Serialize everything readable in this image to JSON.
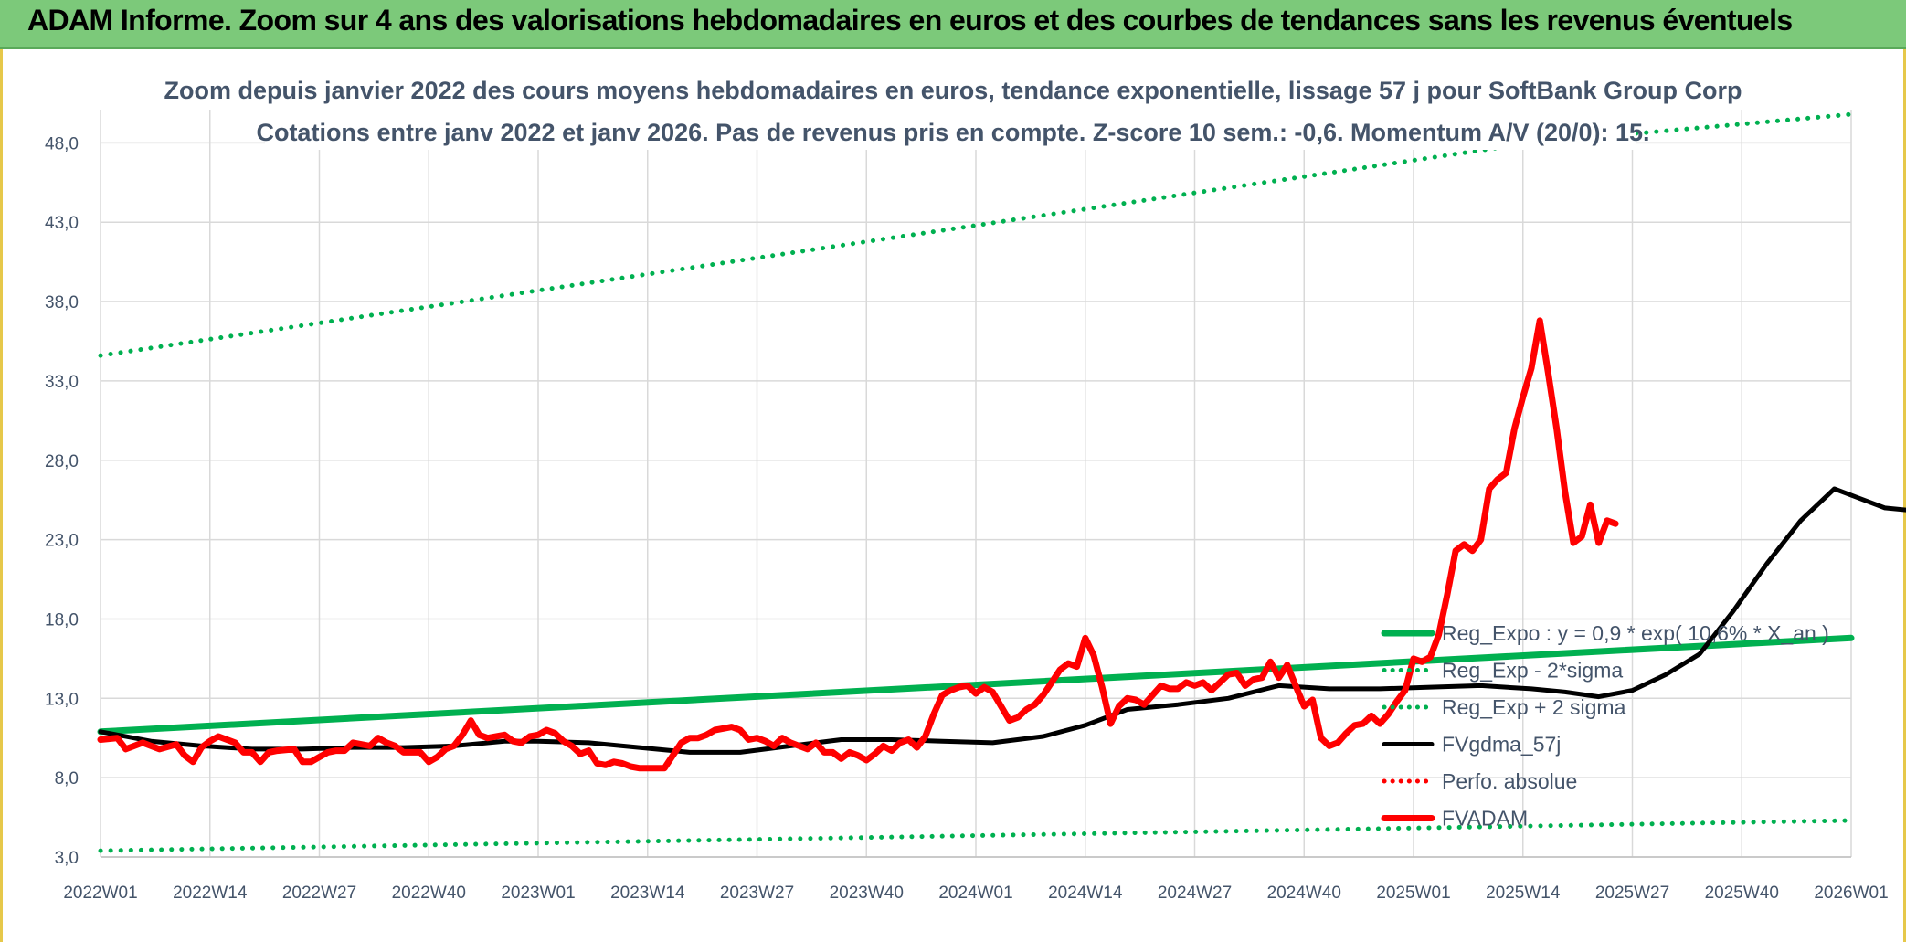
{
  "header": {
    "banner": "ADAM Informe. Zoom sur 4 ans des valorisations hebdomadaires en euros et des courbes de tendances sans les revenus éventuels"
  },
  "colors": {
    "banner_bg": "#7cc97a",
    "trend_green": "#00b050",
    "moving_average": "#000000",
    "price_red": "#ff0000",
    "grid": "#d9d9d9",
    "text": "#44546a"
  },
  "chart_data": {
    "type": "line",
    "title": [
      "Zoom depuis janvier 2022 des cours moyens hebdomadaires en euros, tendance exponentielle, lissage 57 j pour SoftBank Group Corp",
      "Cotations entre janv 2022 et janv 2026. Pas de revenus pris en compte. Z-score 10 sem.: -0,6. Momentum A/V (20/0): 15."
    ],
    "x_ticks": [
      "2022W01",
      "2022W14",
      "2022W27",
      "2022W40",
      "2023W01",
      "2023W14",
      "2023W27",
      "2023W40",
      "2024W01",
      "2024W14",
      "2024W27",
      "2024W40",
      "2025W01",
      "2025W14",
      "2025W27",
      "2025W40",
      "2026W01"
    ],
    "y_ticks": [
      "3,0",
      "8,0",
      "13,0",
      "18,0",
      "23,0",
      "28,0",
      "33,0",
      "38,0",
      "43,0",
      "48,0"
    ],
    "ylim": [
      3,
      50
    ],
    "grid": true,
    "legend_position": "right",
    "series": [
      {
        "name": "Reg_Expo : y = 0,9 * exp( 10,6% * X_an )",
        "style": "solid-thick",
        "color": "#00b050",
        "points": [
          [
            0,
            10.9
          ],
          [
            208,
            16.8
          ]
        ]
      },
      {
        "name": "Reg_Exp - 2*sigma",
        "style": "dotted",
        "color": "#00b050",
        "points": [
          [
            0,
            3.4
          ],
          [
            208,
            5.3
          ]
        ]
      },
      {
        "name": "Reg_Exp + 2 sigma",
        "style": "dotted",
        "color": "#00b050",
        "points": [
          [
            0,
            34.6
          ],
          [
            170,
            48.0
          ],
          [
            208,
            50.0
          ]
        ]
      },
      {
        "name": "FVgdma_57j",
        "style": "solid",
        "color": "#000000",
        "points": [
          [
            0,
            10.9
          ],
          [
            6,
            10.3
          ],
          [
            12,
            10.0
          ],
          [
            18,
            9.8
          ],
          [
            24,
            9.8
          ],
          [
            30,
            9.9
          ],
          [
            36,
            9.9
          ],
          [
            42,
            10.0
          ],
          [
            48,
            10.3
          ],
          [
            52,
            10.3
          ],
          [
            58,
            10.2
          ],
          [
            64,
            9.9
          ],
          [
            70,
            9.6
          ],
          [
            76,
            9.6
          ],
          [
            82,
            10.0
          ],
          [
            88,
            10.4
          ],
          [
            94,
            10.4
          ],
          [
            100,
            10.3
          ],
          [
            106,
            10.2
          ],
          [
            112,
            10.6
          ],
          [
            117,
            11.3
          ],
          [
            122,
            12.3
          ],
          [
            128,
            12.6
          ],
          [
            134,
            13.0
          ],
          [
            140,
            13.8
          ],
          [
            146,
            13.6
          ],
          [
            152,
            13.6
          ],
          [
            158,
            13.7
          ],
          [
            164,
            13.8
          ],
          [
            170,
            13.6
          ],
          [
            174,
            13.4
          ],
          [
            178,
            13.1
          ],
          [
            182,
            13.5
          ],
          [
            186,
            14.5
          ],
          [
            190,
            15.8
          ],
          [
            194,
            18.5
          ],
          [
            198,
            21.5
          ],
          [
            202,
            24.2
          ],
          [
            206,
            26.2
          ],
          [
            212,
            25.0
          ],
          [
            218,
            24.7
          ]
        ]
      },
      {
        "name": "Perfo. absolue",
        "style": "dotted",
        "color": "#ff0000",
        "points": []
      },
      {
        "name": "FVADAM",
        "style": "solid-thick",
        "color": "#ff0000",
        "points": [
          [
            0,
            10.4
          ],
          [
            2,
            10.5
          ],
          [
            3,
            9.8
          ],
          [
            5,
            10.2
          ],
          [
            7,
            9.8
          ],
          [
            9,
            10.1
          ],
          [
            10,
            9.4
          ],
          [
            11,
            9.0
          ],
          [
            12,
            9.9
          ],
          [
            13,
            10.3
          ],
          [
            14,
            10.6
          ],
          [
            16,
            10.2
          ],
          [
            17,
            9.6
          ],
          [
            18,
            9.6
          ],
          [
            19,
            9.0
          ],
          [
            20,
            9.6
          ],
          [
            21,
            9.7
          ],
          [
            23,
            9.8
          ],
          [
            24,
            9.0
          ],
          [
            25,
            9.0
          ],
          [
            26,
            9.3
          ],
          [
            27,
            9.6
          ],
          [
            28,
            9.7
          ],
          [
            29,
            9.7
          ],
          [
            30,
            10.2
          ],
          [
            31,
            10.1
          ],
          [
            32,
            10.0
          ],
          [
            33,
            10.5
          ],
          [
            34,
            10.2
          ],
          [
            35,
            10.0
          ],
          [
            36,
            9.6
          ],
          [
            38,
            9.6
          ],
          [
            39,
            9.0
          ],
          [
            40,
            9.3
          ],
          [
            41,
            9.8
          ],
          [
            42,
            10.0
          ],
          [
            43,
            10.7
          ],
          [
            44,
            11.6
          ],
          [
            45,
            10.7
          ],
          [
            46,
            10.5
          ],
          [
            48,
            10.7
          ],
          [
            49,
            10.3
          ],
          [
            50,
            10.2
          ],
          [
            51,
            10.6
          ],
          [
            52,
            10.7
          ],
          [
            53,
            11.0
          ],
          [
            54,
            10.8
          ],
          [
            55,
            10.3
          ],
          [
            56,
            10.0
          ],
          [
            57,
            9.5
          ],
          [
            58,
            9.7
          ],
          [
            59,
            8.9
          ],
          [
            60,
            8.8
          ],
          [
            61,
            9.0
          ],
          [
            62,
            8.9
          ],
          [
            63,
            8.7
          ],
          [
            64,
            8.6
          ],
          [
            65,
            8.6
          ],
          [
            66,
            8.6
          ],
          [
            67,
            8.6
          ],
          [
            68,
            9.4
          ],
          [
            69,
            10.2
          ],
          [
            70,
            10.5
          ],
          [
            71,
            10.5
          ],
          [
            72,
            10.7
          ],
          [
            73,
            11.0
          ],
          [
            74,
            11.1
          ],
          [
            75,
            11.2
          ],
          [
            76,
            11.0
          ],
          [
            77,
            10.4
          ],
          [
            78,
            10.5
          ],
          [
            79,
            10.3
          ],
          [
            80,
            10.0
          ],
          [
            81,
            10.5
          ],
          [
            82,
            10.2
          ],
          [
            83,
            10.0
          ],
          [
            84,
            9.8
          ],
          [
            85,
            10.2
          ],
          [
            86,
            9.6
          ],
          [
            87,
            9.6
          ],
          [
            88,
            9.2
          ],
          [
            89,
            9.6
          ],
          [
            90,
            9.4
          ],
          [
            91,
            9.1
          ],
          [
            92,
            9.5
          ],
          [
            93,
            10.0
          ],
          [
            94,
            9.7
          ],
          [
            95,
            10.2
          ],
          [
            96,
            10.4
          ],
          [
            97,
            9.9
          ],
          [
            98,
            10.6
          ],
          [
            99,
            12.0
          ],
          [
            100,
            13.2
          ],
          [
            101,
            13.5
          ],
          [
            102,
            13.7
          ],
          [
            103,
            13.8
          ],
          [
            104,
            13.3
          ],
          [
            105,
            13.7
          ],
          [
            106,
            13.4
          ],
          [
            107,
            12.5
          ],
          [
            108,
            11.6
          ],
          [
            109,
            11.8
          ],
          [
            110,
            12.3
          ],
          [
            111,
            12.6
          ],
          [
            112,
            13.2
          ],
          [
            113,
            14.0
          ],
          [
            114,
            14.8
          ],
          [
            115,
            15.2
          ],
          [
            116,
            15.0
          ],
          [
            117,
            16.8
          ],
          [
            118,
            15.7
          ],
          [
            119,
            13.7
          ],
          [
            120,
            11.4
          ],
          [
            121,
            12.5
          ],
          [
            122,
            13.0
          ],
          [
            123,
            12.9
          ],
          [
            124,
            12.6
          ],
          [
            125,
            13.2
          ],
          [
            126,
            13.8
          ],
          [
            127,
            13.6
          ],
          [
            128,
            13.6
          ],
          [
            129,
            14.0
          ],
          [
            130,
            13.8
          ],
          [
            131,
            14.0
          ],
          [
            132,
            13.5
          ],
          [
            133,
            14.0
          ],
          [
            134,
            14.5
          ],
          [
            135,
            14.6
          ],
          [
            136,
            13.8
          ],
          [
            137,
            14.2
          ],
          [
            138,
            14.3
          ],
          [
            139,
            15.3
          ],
          [
            140,
            14.3
          ],
          [
            141,
            15.1
          ],
          [
            142,
            13.8
          ],
          [
            143,
            12.5
          ],
          [
            144,
            12.9
          ],
          [
            145,
            10.5
          ],
          [
            146,
            10.0
          ],
          [
            147,
            10.2
          ],
          [
            148,
            10.8
          ],
          [
            149,
            11.3
          ],
          [
            150,
            11.4
          ],
          [
            151,
            11.9
          ],
          [
            152,
            11.4
          ],
          [
            153,
            12.0
          ],
          [
            154,
            12.8
          ],
          [
            155,
            13.5
          ],
          [
            156,
            15.5
          ],
          [
            157,
            15.3
          ],
          [
            158,
            15.6
          ],
          [
            159,
            17.0
          ],
          [
            160,
            19.5
          ],
          [
            161,
            22.3
          ],
          [
            162,
            22.7
          ],
          [
            163,
            22.3
          ],
          [
            164,
            23.0
          ],
          [
            165,
            26.2
          ],
          [
            166,
            26.8
          ],
          [
            167,
            27.2
          ],
          [
            168,
            30.0
          ],
          [
            169,
            32.0
          ],
          [
            170,
            33.8
          ],
          [
            171,
            36.8
          ],
          [
            172,
            33.5
          ],
          [
            173,
            30.0
          ],
          [
            174,
            26.0
          ],
          [
            175,
            22.8
          ],
          [
            176,
            23.2
          ],
          [
            177,
            25.2
          ],
          [
            178,
            22.8
          ],
          [
            179,
            24.2
          ],
          [
            180,
            24.0
          ]
        ]
      }
    ]
  }
}
